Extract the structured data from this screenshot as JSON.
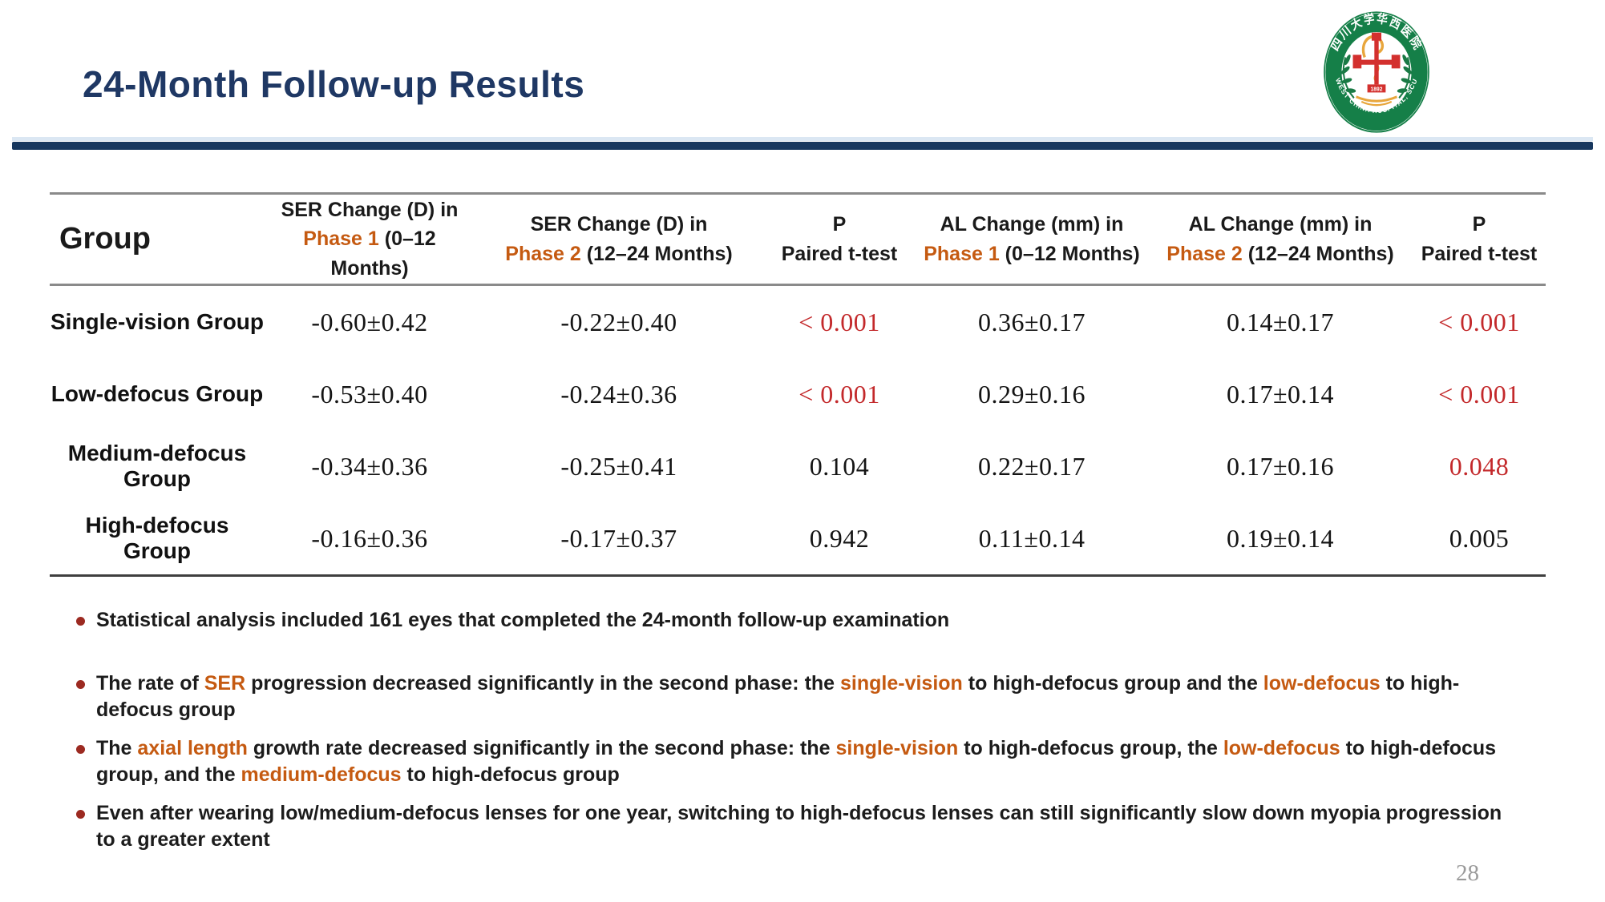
{
  "slide": {
    "title": "24-Month Follow-up Results",
    "page_number": "28"
  },
  "colors": {
    "title_navy": "#1F3864",
    "divider_navy": "#17375E",
    "accent_orange": "#C55A11",
    "pvalue_red": "#C3292B",
    "bullet_dot_red": "#9C2A21",
    "logo_green": "#157F48",
    "logo_gold": "#E8A63C",
    "logo_cross_red": "#D3302E"
  },
  "logo": {
    "top_text": "四川大学华西医院",
    "bottom_text": "WEST CHINA HOSPITAL, SCU",
    "year": "1892"
  },
  "table": {
    "headers": {
      "group": "Group",
      "ser1": {
        "line1": "SER Change (D) in",
        "phase": "Phase 1",
        "range": " (0–12 Months)"
      },
      "ser2": {
        "line1": "SER Change (D) in",
        "phase": "Phase 2",
        "range": " (12–24 Months)"
      },
      "p1": {
        "line1": "P",
        "line2": "Paired t-test"
      },
      "al1": {
        "line1": "AL Change (mm) in",
        "phase": "Phase 1",
        "range": " (0–12 Months)"
      },
      "al2": {
        "line1": "AL Change (mm) in",
        "phase": "Phase 2",
        "range": " (12–24 Months)"
      },
      "p2": {
        "line1": "P",
        "line2": "Paired t-test"
      }
    },
    "rows": [
      {
        "group": "Single-vision Group",
        "ser1": "-0.60±0.42",
        "ser2": "-0.22±0.40",
        "p1": {
          "value": "< 0.001",
          "red": true
        },
        "al1": "0.36±0.17",
        "al2": "0.14±0.17",
        "p2": {
          "value": "< 0.001",
          "red": true
        }
      },
      {
        "group": "Low-defocus Group",
        "ser1": "-0.53±0.40",
        "ser2": "-0.24±0.36",
        "p1": {
          "value": "< 0.001",
          "red": true
        },
        "al1": "0.29±0.16",
        "al2": "0.17±0.14",
        "p2": {
          "value": "< 0.001",
          "red": true
        }
      },
      {
        "group": "Medium-defocus Group",
        "ser1": "-0.34±0.36",
        "ser2": "-0.25±0.41",
        "p1": {
          "value": "0.104",
          "red": false
        },
        "al1": "0.22±0.17",
        "al2": "0.17±0.16",
        "p2": {
          "value": "0.048",
          "red": true
        }
      },
      {
        "group": "High-defocus Group",
        "ser1": "-0.16±0.36",
        "ser2": "-0.17±0.37",
        "p1": {
          "value": "0.942",
          "red": false
        },
        "al1": "0.11±0.14",
        "al2": "0.19±0.14",
        "p2": {
          "value": "0.005",
          "red": false
        }
      }
    ]
  },
  "bullets": [
    {
      "segments": [
        {
          "t": "Statistical analysis included 161 eyes that completed the 24-month follow-up examination"
        }
      ]
    },
    {
      "segments": [
        {
          "t": "The rate of "
        },
        {
          "t": "SER",
          "c": "orange"
        },
        {
          "t": " progression decreased significantly in the second phase: the "
        },
        {
          "t": "single-vision",
          "c": "orange"
        },
        {
          "t": " to high-defocus group and the "
        },
        {
          "t": "low-defocus",
          "c": "orange"
        },
        {
          "t": " to high-defocus group"
        }
      ]
    },
    {
      "segments": [
        {
          "t": "The "
        },
        {
          "t": "axial length",
          "c": "orange"
        },
        {
          "t": " growth rate decreased significantly in the second phase: the "
        },
        {
          "t": "single-vision",
          "c": "orange"
        },
        {
          "t": " to high-defocus group, the "
        },
        {
          "t": "low-defocus",
          "c": "orange"
        },
        {
          "t": " to high-defocus group, and the "
        },
        {
          "t": "medium-defocus",
          "c": "orange"
        },
        {
          "t": " to high-defocus group"
        }
      ]
    },
    {
      "segments": [
        {
          "t": "Even after wearing low/medium-defocus lenses for one year, switching to high-defocus lenses can still significantly slow down myopia progression to a greater extent"
        }
      ]
    }
  ]
}
